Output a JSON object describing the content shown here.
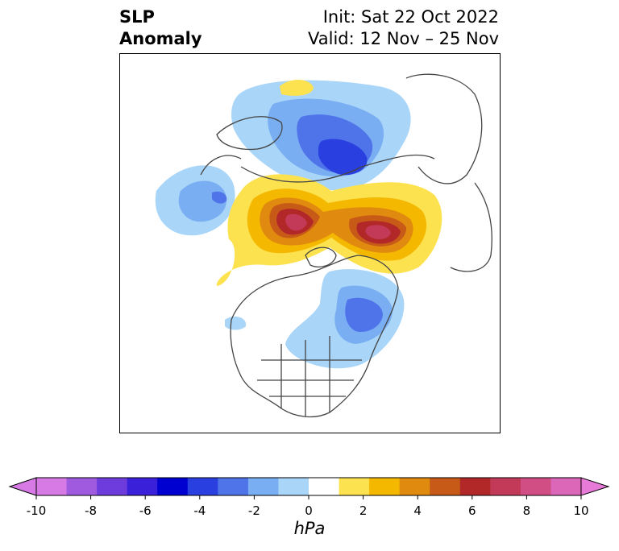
{
  "title": {
    "left_line1": "SLP",
    "left_line2": "Anomaly",
    "init": "Init: Sat 22 Oct 2022",
    "valid": "Valid: 12 Nov – 25 Nov"
  },
  "colorbar": {
    "unit": "hPa",
    "ticks": [
      "-10",
      "-8",
      "-6",
      "-4",
      "-2",
      "0",
      "2",
      "4",
      "6",
      "8",
      "10"
    ],
    "extend": "both",
    "under_color": "#d77ae6",
    "over_color": "#e87ad8",
    "bins": [
      "#d77ae6",
      "#a05ae0",
      "#6e3cdc",
      "#3a20d8",
      "#0000d0",
      "#2a3fe0",
      "#4f74ea",
      "#7aaef2",
      "#a9d5f8",
      "#ffffff",
      "#fde250",
      "#f4b800",
      "#e08a10",
      "#c85a18",
      "#b22828",
      "#c23a58",
      "#d04e84",
      "#dc66b8"
    ]
  },
  "map": {
    "projection": "north-polar-stereographic",
    "anomaly_centers": [
      {
        "region": "northern-russia-siberia",
        "sign": "negative",
        "peak": -6
      },
      {
        "region": "north-pacific-kamchatka",
        "sign": "negative",
        "peak": -4
      },
      {
        "region": "arctic-beaufort",
        "sign": "positive",
        "peak": 8
      },
      {
        "region": "greenland-sea-scandinavia",
        "sign": "positive",
        "peak": 8
      },
      {
        "region": "eastern-canada-labrador",
        "sign": "negative",
        "peak": -5
      }
    ]
  }
}
